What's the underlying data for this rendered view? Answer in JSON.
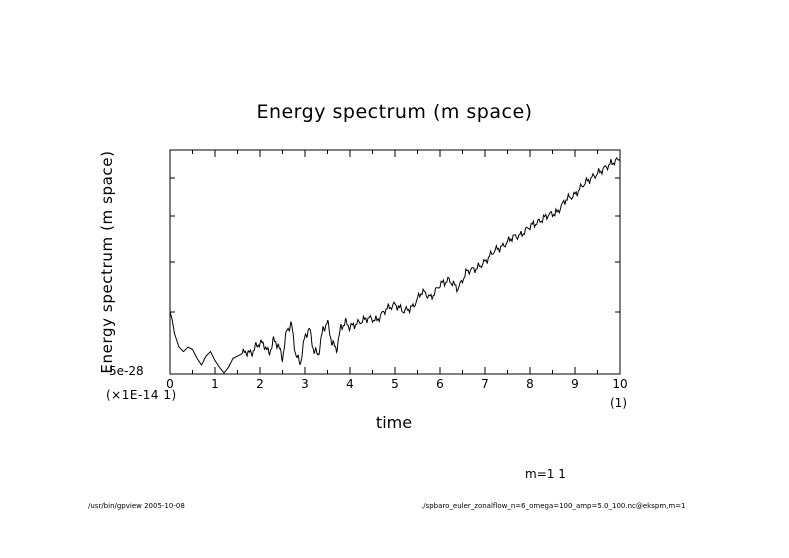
{
  "chart_data": {
    "type": "line",
    "title": "Energy spectrum (m space)",
    "xlabel": "time",
    "ylabel": "Energy spectrum (m space)",
    "y_min_label": "5e-28",
    "y_scale_note": "(×1E-14 1)",
    "x_scale_note": "(1)",
    "x_tick_labels": [
      "0",
      "1",
      "2",
      "3",
      "4",
      "5",
      "6",
      "7",
      "8",
      "9",
      "10"
    ],
    "xlim": [
      0,
      10
    ],
    "grid": false,
    "legend": "none",
    "series": [
      {
        "x": [
          0.0,
          0.05,
          0.1,
          0.2,
          0.3,
          0.4,
          0.5,
          0.6,
          0.7,
          0.8,
          0.9,
          1.0,
          1.1,
          1.2,
          1.3,
          1.4,
          1.5,
          1.6,
          1.7,
          1.8,
          1.9,
          2.0,
          2.1,
          2.2,
          2.3,
          2.4,
          2.5,
          2.6,
          2.7,
          2.8,
          2.9,
          3.0,
          3.1,
          3.2,
          3.3,
          3.4,
          3.5,
          3.6,
          3.7,
          3.8,
          3.9,
          4.0,
          4.2,
          4.4,
          4.6,
          4.8,
          5.0,
          5.2,
          5.4,
          5.6,
          5.8,
          6.0,
          6.2,
          6.4,
          6.6,
          6.8,
          7.0,
          7.2,
          7.4,
          7.6,
          7.8,
          8.0,
          8.2,
          8.4,
          8.6,
          8.8,
          9.0,
          9.2,
          9.4,
          9.6,
          9.8,
          10.0
        ],
        "y": [
          0.28,
          0.24,
          0.18,
          0.12,
          0.1,
          0.12,
          0.11,
          0.07,
          0.04,
          0.08,
          0.1,
          0.06,
          0.03,
          0.005,
          0.03,
          0.07,
          0.08,
          0.09,
          0.1,
          0.09,
          0.12,
          0.14,
          0.13,
          0.09,
          0.15,
          0.13,
          0.07,
          0.2,
          0.22,
          0.08,
          0.05,
          0.17,
          0.2,
          0.1,
          0.09,
          0.2,
          0.23,
          0.14,
          0.11,
          0.21,
          0.23,
          0.21,
          0.23,
          0.25,
          0.24,
          0.29,
          0.31,
          0.28,
          0.3,
          0.37,
          0.34,
          0.4,
          0.42,
          0.38,
          0.46,
          0.47,
          0.5,
          0.55,
          0.57,
          0.61,
          0.62,
          0.66,
          0.68,
          0.71,
          0.72,
          0.78,
          0.8,
          0.85,
          0.88,
          0.91,
          0.94,
          0.96
        ]
      }
    ]
  },
  "annotation": "m=1 1",
  "footer": {
    "left": "/usr/bin/gpview  2005-10-08",
    "right": "./spbaro_euler_zonalflow_n=6_omega=100_amp=5.0_100.nc@ekspm,m=1"
  }
}
